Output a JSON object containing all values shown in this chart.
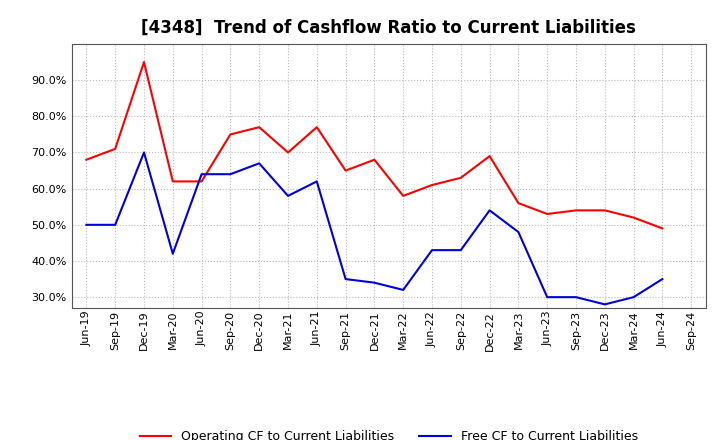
{
  "title": "[4348]  Trend of Cashflow Ratio to Current Liabilities",
  "x_labels": [
    "Jun-19",
    "Sep-19",
    "Dec-19",
    "Mar-20",
    "Jun-20",
    "Sep-20",
    "Dec-20",
    "Mar-21",
    "Jun-21",
    "Sep-21",
    "Dec-21",
    "Mar-22",
    "Jun-22",
    "Sep-22",
    "Dec-22",
    "Mar-23",
    "Jun-23",
    "Sep-23",
    "Dec-23",
    "Mar-24",
    "Jun-24",
    "Sep-24"
  ],
  "operating_cf": [
    0.68,
    0.71,
    0.95,
    0.62,
    0.62,
    0.75,
    0.77,
    0.7,
    0.77,
    0.65,
    0.68,
    0.58,
    0.61,
    0.63,
    0.69,
    0.56,
    0.53,
    0.54,
    0.54,
    0.52,
    0.49,
    null
  ],
  "free_cf": [
    0.5,
    0.5,
    0.7,
    0.42,
    0.64,
    0.64,
    0.67,
    0.58,
    0.62,
    0.35,
    0.34,
    0.32,
    0.43,
    0.43,
    0.54,
    0.48,
    0.3,
    0.3,
    0.28,
    0.3,
    0.35,
    null
  ],
  "operating_color": "#ff0000",
  "free_color": "#0000dd",
  "ylim_min": 0.27,
  "ylim_max": 1.0,
  "yticks": [
    0.3,
    0.4,
    0.5,
    0.6,
    0.7,
    0.8,
    0.9
  ],
  "legend_labels": [
    "Operating CF to Current Liabilities",
    "Free CF to Current Liabilities"
  ],
  "background_color": "#ffffff",
  "plot_bg_color": "#ffffff",
  "title_fontsize": 12,
  "tick_fontsize": 8,
  "line_width": 1.5,
  "grid_color": "#bbbbbb",
  "spine_color": "#555555"
}
